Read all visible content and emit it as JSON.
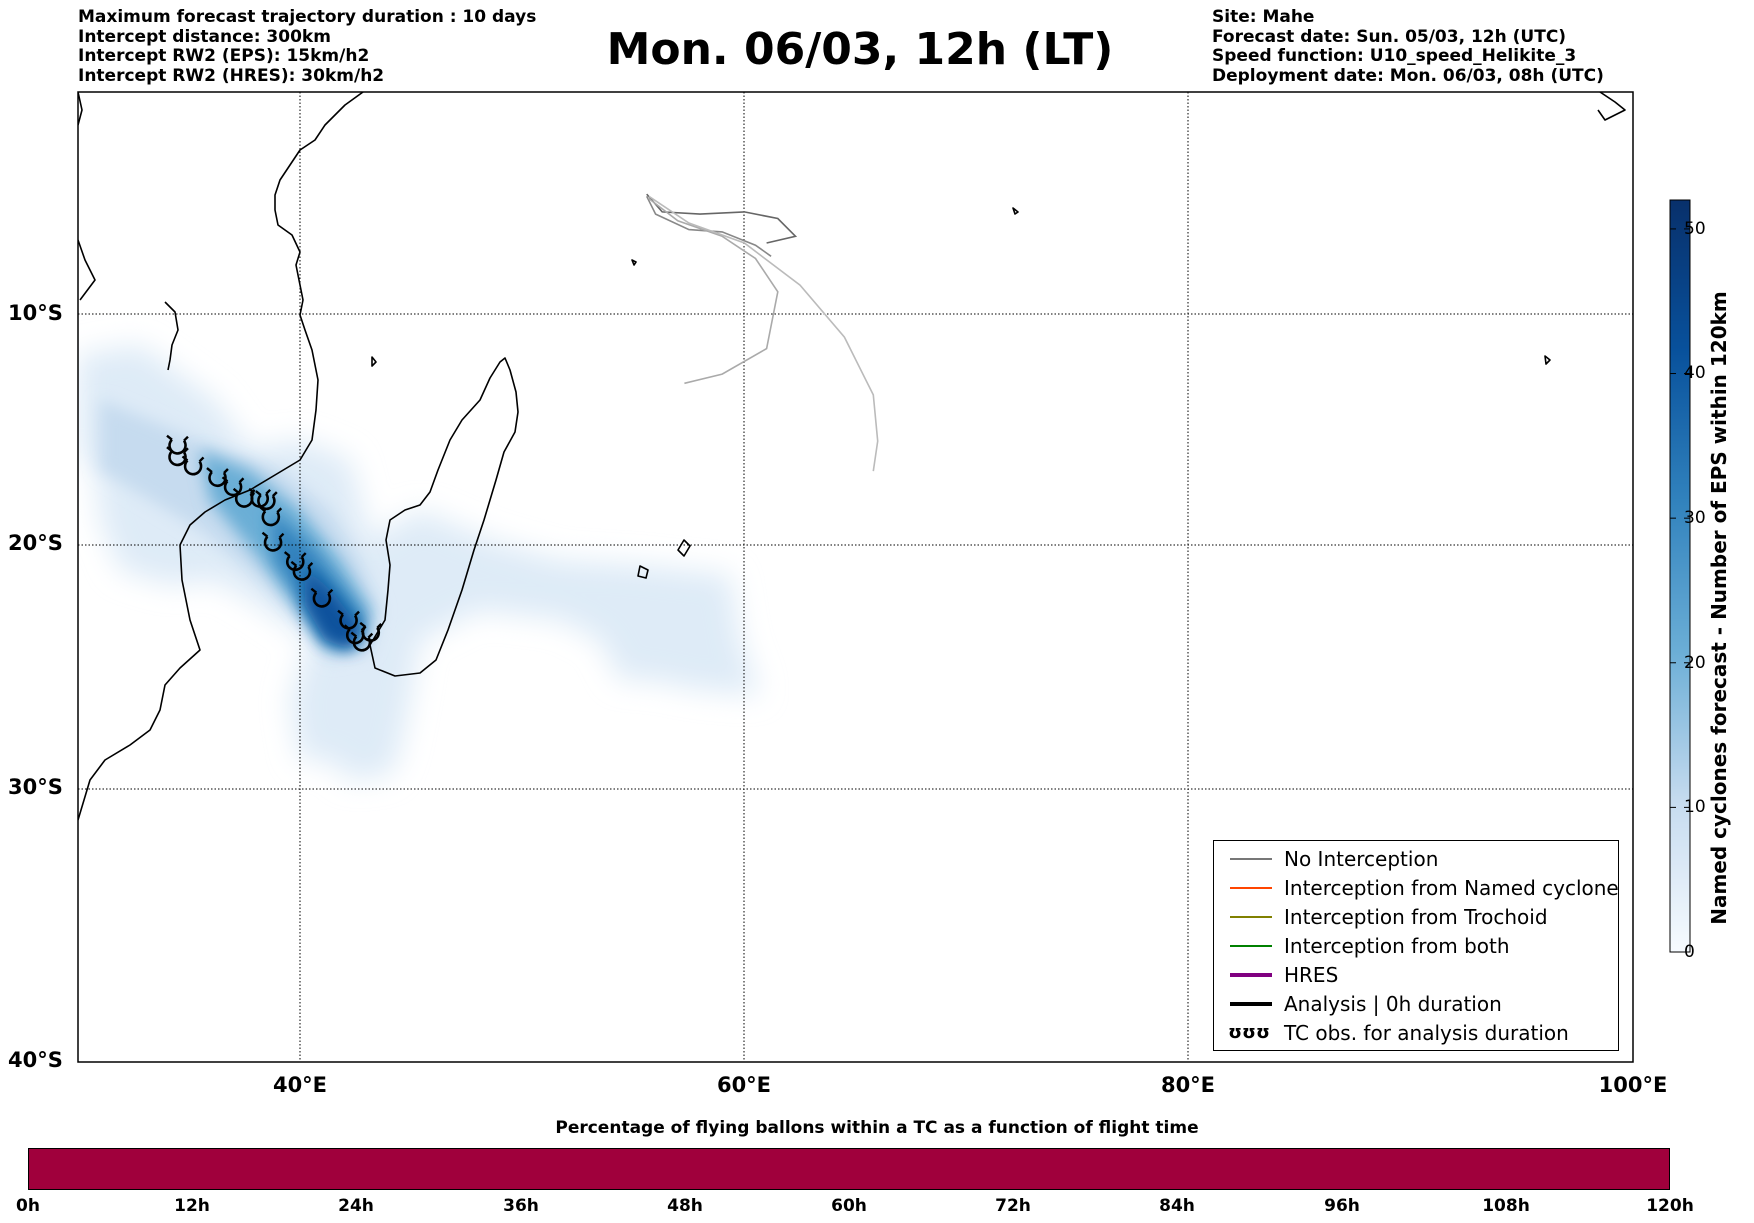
{
  "title": "Mon. 06/03, 12h (LT)",
  "info_left": [
    "Maximum forecast trajectory duration : 10 days",
    "Intercept distance: 300km",
    "Intercept RW2 (EPS):  15km/h2",
    "Intercept RW2 (HRES): 30km/h2"
  ],
  "info_right": [
    "Site: Mahe",
    "Forecast date: Sun. 05/03, 12h (UTC)",
    "Speed function: U10_speed_Helikite_3",
    "Deployment date: Mon. 06/03, 08h (UTC)"
  ],
  "map": {
    "lon_range": [
      30,
      100
    ],
    "lat_range": [
      -40,
      0
    ],
    "lon_labels": [
      "40°E",
      "60°E",
      "80°E",
      "100°E"
    ],
    "lat_labels": [
      "10°S",
      "20°S",
      "30°S",
      "40°S"
    ],
    "grid": "dotted",
    "colors": {
      "coast": "#000000",
      "no_interception": "#777777",
      "density_low": "#deebf7",
      "density_high": "#08306b"
    },
    "site_marker": {
      "name": "Mahe",
      "lon": 55.5,
      "lat": -4.6
    },
    "trajectories": [
      {
        "color": "#666666",
        "points": [
          [
            55.6,
            -4.6
          ],
          [
            56.3,
            -5.4
          ],
          [
            58,
            -5.5
          ],
          [
            60,
            -5.4
          ],
          [
            61.5,
            -5.7
          ],
          [
            62.3,
            -6.5
          ],
          [
            61,
            -6.8
          ]
        ]
      },
      {
        "color": "#888888",
        "points": [
          [
            55.6,
            -4.7
          ],
          [
            56,
            -5.5
          ],
          [
            57.5,
            -6.2
          ],
          [
            59,
            -6.3
          ],
          [
            60.5,
            -6.9
          ],
          [
            61.2,
            -7.4
          ]
        ]
      },
      {
        "color": "#aaaaaa",
        "points": [
          [
            55.7,
            -4.8
          ],
          [
            57,
            -5.8
          ],
          [
            59,
            -6.5
          ],
          [
            60.5,
            -7.5
          ],
          [
            61.5,
            -9
          ],
          [
            61,
            -11.5
          ],
          [
            59,
            -12.6
          ],
          [
            57.3,
            -13
          ]
        ]
      },
      {
        "color": "#bbbbbb",
        "points": [
          [
            55.7,
            -4.7
          ],
          [
            57.5,
            -5.9
          ],
          [
            60,
            -6.8
          ],
          [
            62.5,
            -8.7
          ],
          [
            64.5,
            -11
          ],
          [
            65.8,
            -13.5
          ],
          [
            66,
            -15.5
          ],
          [
            65.8,
            -16.8
          ]
        ]
      }
    ],
    "tc_obs": [
      [
        34.5,
        -15.7
      ],
      [
        34.5,
        -16.2
      ],
      [
        35.2,
        -16.6
      ],
      [
        36.3,
        -17.1
      ],
      [
        37,
        -17.5
      ],
      [
        37.5,
        -18
      ],
      [
        38.2,
        -18
      ],
      [
        38.5,
        -18.1
      ],
      [
        38.7,
        -18.8
      ],
      [
        38.8,
        -19.9
      ],
      [
        39.8,
        -20.7
      ],
      [
        40.1,
        -21.1
      ],
      [
        41,
        -22.2
      ],
      [
        42.2,
        -23.1
      ],
      [
        42.5,
        -23.7
      ],
      [
        42.8,
        -24
      ],
      [
        43.2,
        -23.6
      ]
    ]
  },
  "legend": [
    {
      "label": "No Interception",
      "color": "#777777",
      "width": 1.2
    },
    {
      "label": "Interception from Named cyclone",
      "color": "#ff4500",
      "width": 1.2
    },
    {
      "label": "Interception from Trochoid",
      "color": "#808000",
      "width": 1.2
    },
    {
      "label": "Interception from both",
      "color": "#008000",
      "width": 1.2
    },
    {
      "label": "HRES",
      "color": "#800080",
      "width": 4
    },
    {
      "label": "Analysis | 0h duration",
      "color": "#000000",
      "width": 4
    },
    {
      "label": "TC obs. for analysis duration",
      "color": "#000000",
      "symbol": "ʊʊʊ"
    }
  ],
  "colorbar": {
    "label": "Named cyclones forecast - Number of EPS within 120km",
    "ticks": [
      "0",
      "10",
      "20",
      "30",
      "40",
      "50"
    ],
    "range": [
      0,
      52
    ],
    "cmap": "Blues"
  },
  "bottom": {
    "title": "Percentage of flying ballons within a TC as a function of flight time",
    "color": "#a0003c",
    "ticks": [
      "0h",
      "12h",
      "24h",
      "36h",
      "48h",
      "60h",
      "72h",
      "84h",
      "96h",
      "108h",
      "120h"
    ]
  }
}
